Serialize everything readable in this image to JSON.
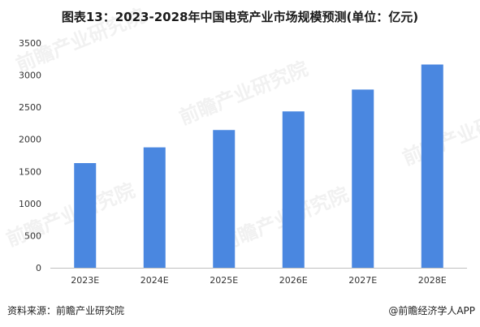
{
  "title": "图表13：2023-2028年中国电竞产业市场规模预测(单位：亿元)",
  "source": "资料来源：前瞻产业研究院",
  "copyright": "@前瞻经济学人APP",
  "watermark_text": "前瞻产业研究院",
  "chart_data": {
    "type": "bar",
    "categories": [
      "2023E",
      "2024E",
      "2025E",
      "2026E",
      "2027E",
      "2028E"
    ],
    "values": [
      1630,
      1875,
      2145,
      2435,
      2775,
      3165
    ],
    "ylim": [
      0,
      3500
    ],
    "yticks": [
      0,
      500,
      1000,
      1500,
      2000,
      2500,
      3000,
      3500
    ],
    "bar_color": "#4a87e0",
    "grid": false
  }
}
